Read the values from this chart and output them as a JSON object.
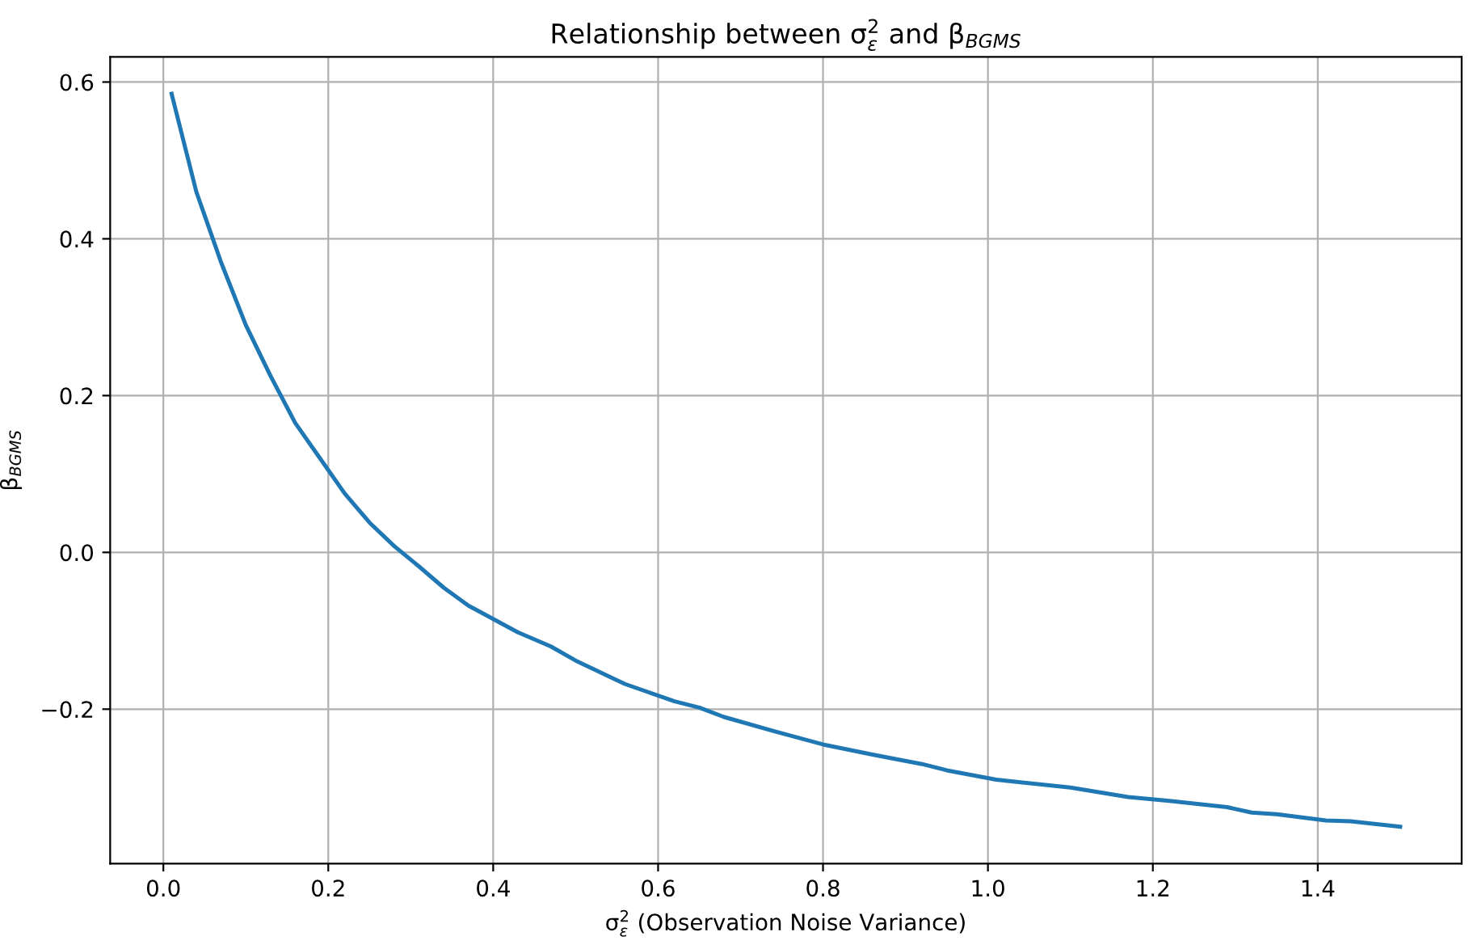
{
  "chart_data": {
    "type": "line",
    "title": "Relationship between σ$^{2}$$_{ε}$ and β$_{BGMS}$",
    "xlabel": "σ$^{2}$$_{ε}$ (Observation Noise Variance)",
    "ylabel": "β$_{BGMS}$",
    "x": [
      0.01,
      0.04,
      0.07,
      0.1,
      0.13,
      0.16,
      0.19,
      0.22,
      0.25,
      0.28,
      0.31,
      0.34,
      0.37,
      0.4,
      0.43,
      0.47,
      0.5,
      0.56,
      0.62,
      0.65,
      0.68,
      0.74,
      0.8,
      0.86,
      0.92,
      0.95,
      1.01,
      1.1,
      1.17,
      1.22,
      1.29,
      1.32,
      1.35,
      1.41,
      1.44,
      1.5
    ],
    "series": [
      {
        "color": "#1f77b4",
        "values": [
          0.585,
          0.46,
          0.37,
          0.29,
          0.225,
          0.165,
          0.12,
          0.075,
          0.038,
          0.008,
          -0.018,
          -0.045,
          -0.068,
          -0.085,
          -0.102,
          -0.12,
          -0.138,
          -0.168,
          -0.19,
          -0.198,
          -0.21,
          -0.228,
          -0.245,
          -0.258,
          -0.27,
          -0.278,
          -0.29,
          -0.3,
          -0.312,
          -0.317,
          -0.325,
          -0.332,
          -0.334,
          -0.342,
          -0.343,
          -0.35
        ]
      }
    ],
    "xlim": [
      -0.0645,
      1.5745
    ],
    "ylim": [
      -0.397,
      0.632
    ],
    "xticks": [
      {
        "value": 0,
        "label": "0.0"
      },
      0.2,
      0.4,
      0.6,
      0.8,
      {
        "value": 1,
        "label": "1.0"
      },
      1.2,
      1.4
    ],
    "yticks": [
      {
        "value": -0.2,
        "label": "−0.2"
      },
      {
        "value": 0,
        "label": "0.0"
      },
      0.2,
      0.4,
      0.6
    ],
    "grid": true,
    "marker": "none",
    "line_style": "solid"
  }
}
